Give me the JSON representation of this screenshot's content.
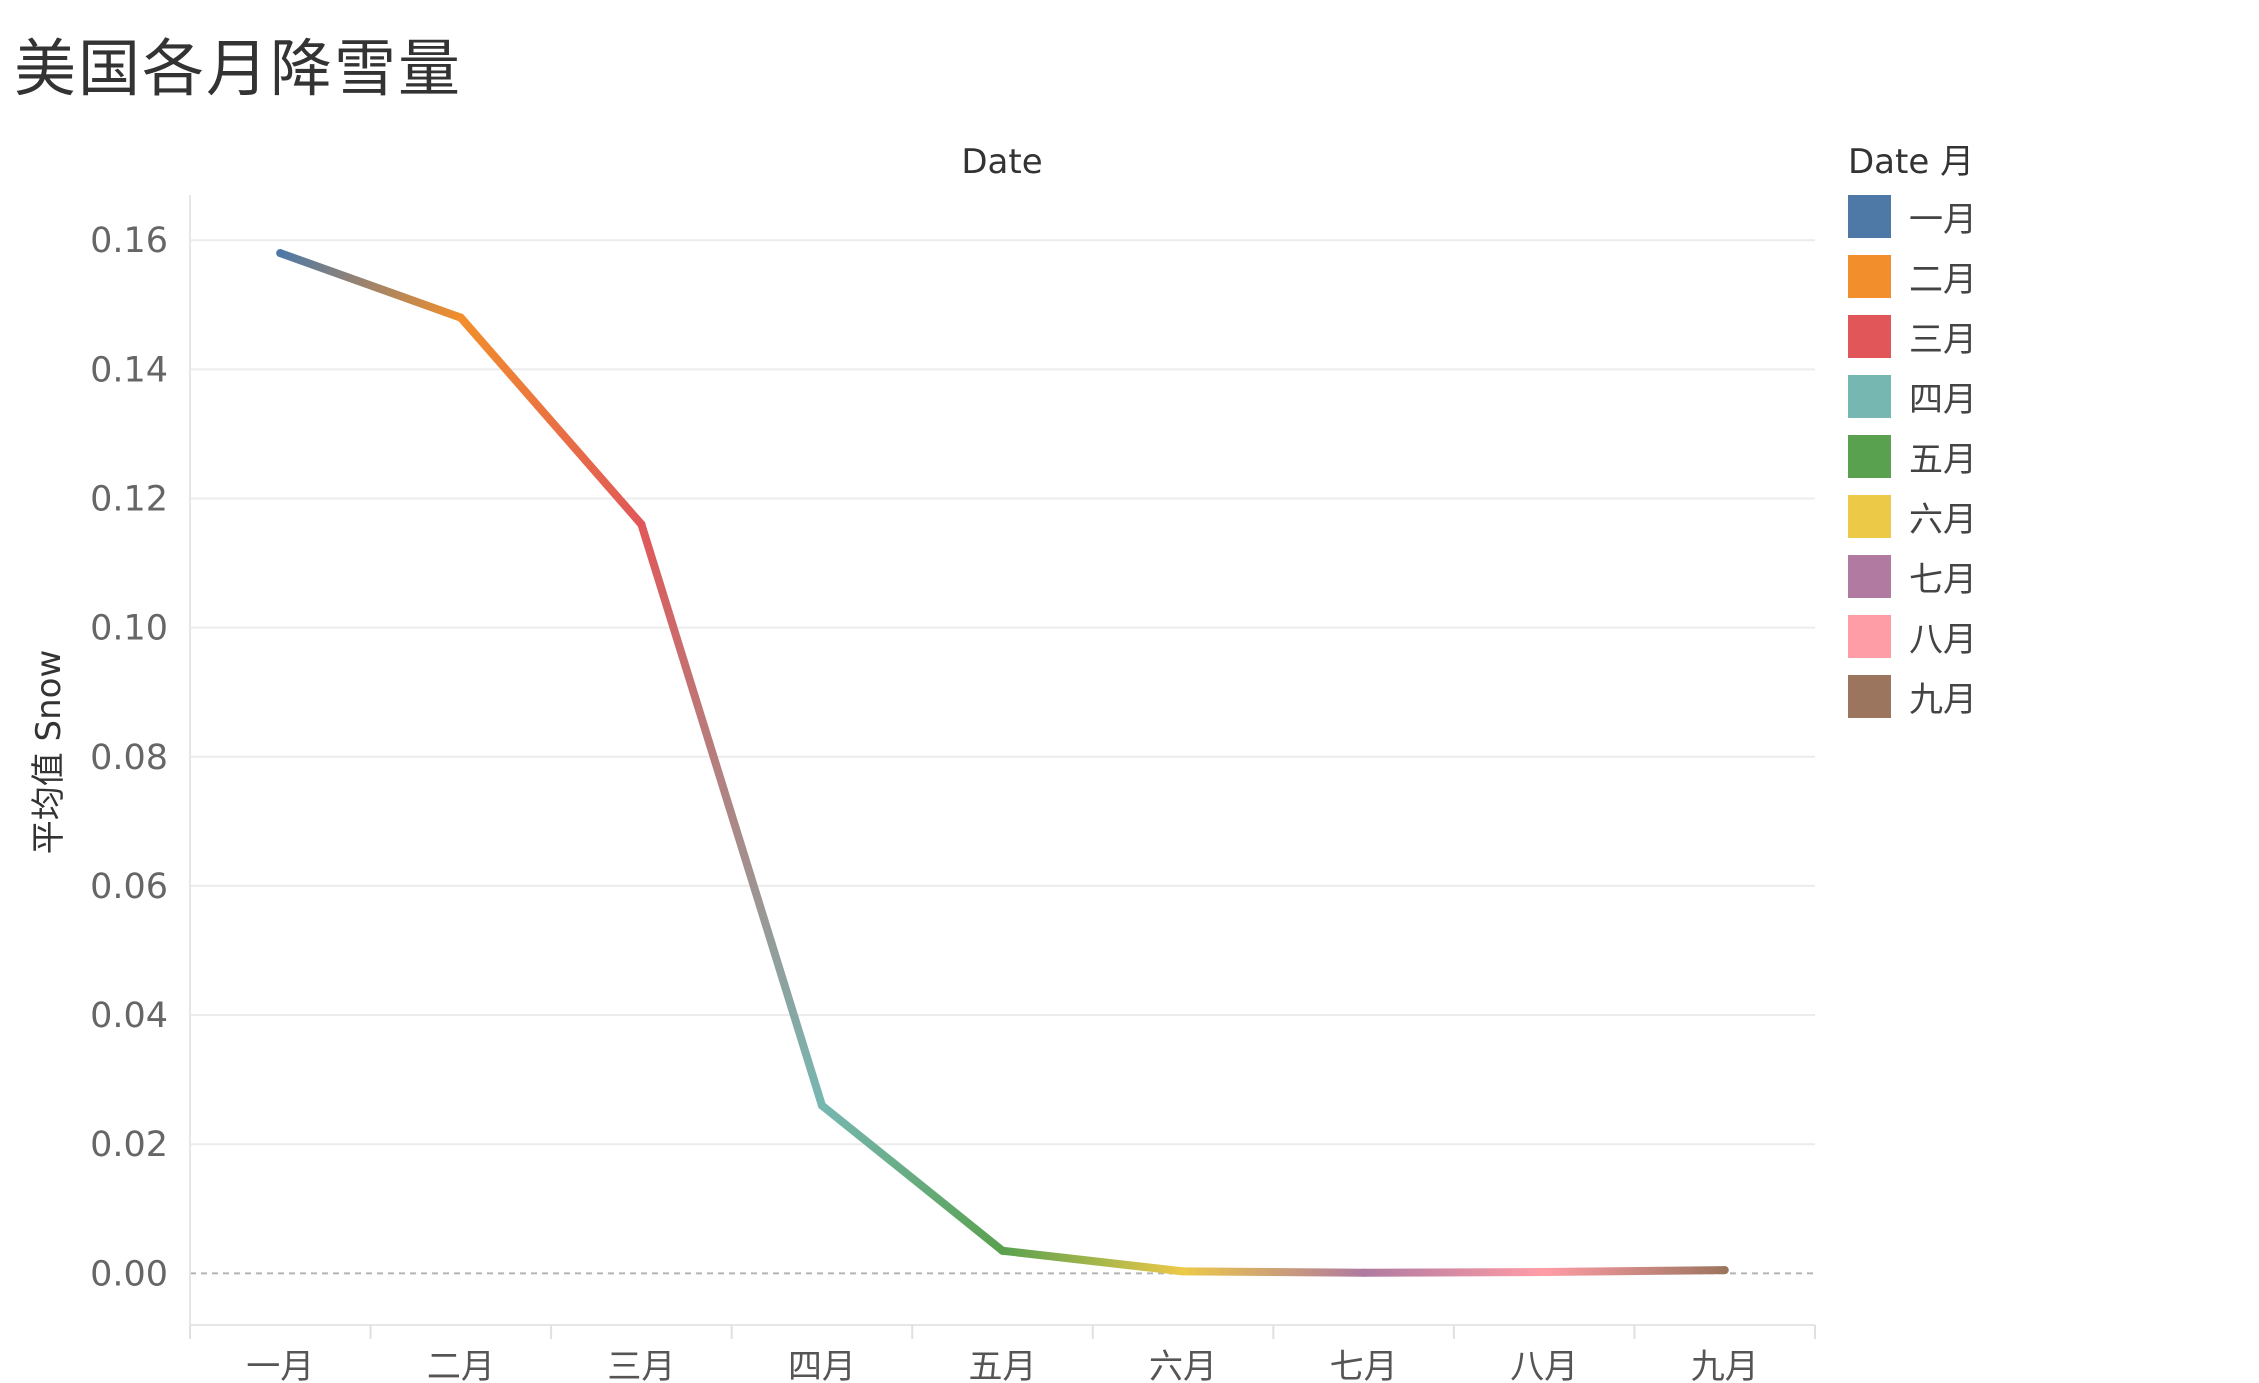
{
  "title": "美国各月降雪量",
  "chart_data": {
    "type": "line",
    "title": "美国各月降雪量",
    "xlabel": "Date",
    "ylabel": "平均值 Snow",
    "categories": [
      "一月",
      "二月",
      "三月",
      "四月",
      "五月",
      "六月",
      "七月",
      "八月",
      "九月"
    ],
    "values": [
      0.158,
      0.148,
      0.116,
      0.026,
      0.0035,
      0.0003,
      0.0001,
      0.0002,
      0.0005
    ],
    "ylim": [
      -0.008,
      0.167
    ],
    "yticks": [
      0.0,
      0.02,
      0.04,
      0.06,
      0.08,
      0.1,
      0.12,
      0.14,
      0.16
    ],
    "ytick_labels": [
      "0.00",
      "0.02",
      "0.04",
      "0.06",
      "0.08",
      "0.10",
      "0.12",
      "0.14",
      "0.16"
    ],
    "grid": true,
    "zero_line": "dashed",
    "legend_position": "right",
    "legend": {
      "title": "Date 月",
      "items": [
        {
          "label": "一月",
          "color": "#4e79a7"
        },
        {
          "label": "二月",
          "color": "#f28e2b"
        },
        {
          "label": "三月",
          "color": "#e15759"
        },
        {
          "label": "四月",
          "color": "#76b7b2"
        },
        {
          "label": "五月",
          "color": "#59a14f"
        },
        {
          "label": "六月",
          "color": "#edc948"
        },
        {
          "label": "七月",
          "color": "#b07aa1"
        },
        {
          "label": "八月",
          "color": "#ff9da7"
        },
        {
          "label": "九月",
          "color": "#9c755f"
        }
      ]
    }
  }
}
